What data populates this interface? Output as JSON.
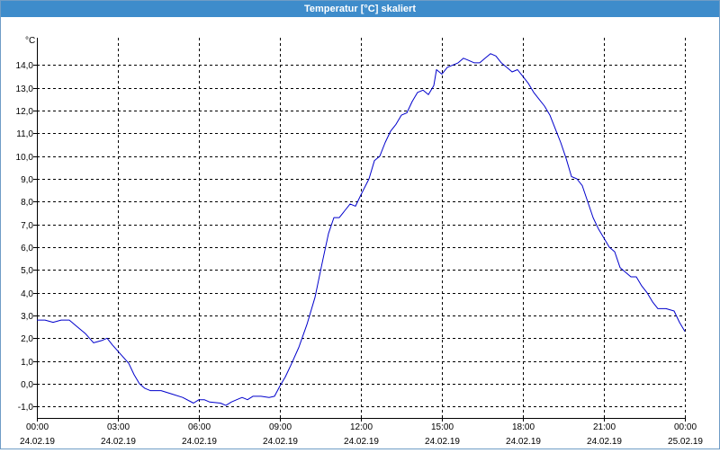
{
  "window": {
    "title": "Temperatur [°C] skaliert"
  },
  "chart_data": {
    "type": "line",
    "title": "Temperatur [°C] skaliert",
    "ylabel": "°C",
    "ylim": [
      -1.5,
      15.2
    ],
    "xlim_hours": [
      0,
      24
    ],
    "grid": true,
    "grid_style": "dashed",
    "line_color": "#0000cc",
    "yticks": [
      -1,
      0,
      1,
      2,
      3,
      4,
      5,
      6,
      7,
      8,
      9,
      10,
      11,
      12,
      13,
      14
    ],
    "ytick_labels": [
      "-1,0",
      "0,0",
      "1,0",
      "2,0",
      "3,0",
      "4,0",
      "5,0",
      "6,0",
      "7,0",
      "8,0",
      "9,0",
      "10,0",
      "11,0",
      "12,0",
      "13,0",
      "14,0"
    ],
    "xticks": [
      {
        "hour": 0,
        "time": "00:00",
        "date": "24.02.19"
      },
      {
        "hour": 3,
        "time": "03:00",
        "date": "24.02.19"
      },
      {
        "hour": 6,
        "time": "06:00",
        "date": "24.02.19"
      },
      {
        "hour": 9,
        "time": "09:00",
        "date": "24.02.19"
      },
      {
        "hour": 12,
        "time": "12:00",
        "date": "24.02.19"
      },
      {
        "hour": 15,
        "time": "15:00",
        "date": "24.02.19"
      },
      {
        "hour": 18,
        "time": "18:00",
        "date": "24.02.19"
      },
      {
        "hour": 21,
        "time": "21:00",
        "date": "24.02.19"
      },
      {
        "hour": 24,
        "time": "00:00",
        "date": "25.02.19"
      }
    ],
    "series": [
      {
        "points": [
          [
            0.0,
            2.8
          ],
          [
            0.3,
            2.8
          ],
          [
            0.6,
            2.7
          ],
          [
            0.9,
            2.8
          ],
          [
            1.2,
            2.8
          ],
          [
            1.5,
            2.5
          ],
          [
            1.8,
            2.2
          ],
          [
            2.1,
            1.8
          ],
          [
            2.4,
            1.9
          ],
          [
            2.6,
            2.0
          ],
          [
            2.8,
            1.7
          ],
          [
            3.1,
            1.3
          ],
          [
            3.4,
            0.9
          ],
          [
            3.6,
            0.4
          ],
          [
            3.8,
            0.0
          ],
          [
            4.0,
            -0.2
          ],
          [
            4.2,
            -0.3
          ],
          [
            4.6,
            -0.3
          ],
          [
            5.0,
            -0.45
          ],
          [
            5.4,
            -0.6
          ],
          [
            5.8,
            -0.85
          ],
          [
            6.0,
            -0.7
          ],
          [
            6.2,
            -0.7
          ],
          [
            6.4,
            -0.8
          ],
          [
            6.8,
            -0.85
          ],
          [
            7.0,
            -0.95
          ],
          [
            7.2,
            -0.8
          ],
          [
            7.4,
            -0.7
          ],
          [
            7.6,
            -0.6
          ],
          [
            7.8,
            -0.7
          ],
          [
            8.0,
            -0.55
          ],
          [
            8.3,
            -0.55
          ],
          [
            8.6,
            -0.6
          ],
          [
            8.8,
            -0.55
          ],
          [
            9.0,
            -0.1
          ],
          [
            9.2,
            0.3
          ],
          [
            9.4,
            0.8
          ],
          [
            9.7,
            1.6
          ],
          [
            10.0,
            2.6
          ],
          [
            10.3,
            3.8
          ],
          [
            10.6,
            5.5
          ],
          [
            10.8,
            6.6
          ],
          [
            11.0,
            7.3
          ],
          [
            11.2,
            7.3
          ],
          [
            11.4,
            7.6
          ],
          [
            11.6,
            7.9
          ],
          [
            11.8,
            7.8
          ],
          [
            12.0,
            8.3
          ],
          [
            12.3,
            9.0
          ],
          [
            12.5,
            9.8
          ],
          [
            12.7,
            10.0
          ],
          [
            12.9,
            10.6
          ],
          [
            13.1,
            11.1
          ],
          [
            13.3,
            11.4
          ],
          [
            13.5,
            11.8
          ],
          [
            13.7,
            11.9
          ],
          [
            13.9,
            12.4
          ],
          [
            14.1,
            12.8
          ],
          [
            14.3,
            12.9
          ],
          [
            14.5,
            12.7
          ],
          [
            14.7,
            13.1
          ],
          [
            14.8,
            13.8
          ],
          [
            15.0,
            13.6
          ],
          [
            15.2,
            13.9
          ],
          [
            15.4,
            14.0
          ],
          [
            15.6,
            14.1
          ],
          [
            15.8,
            14.3
          ],
          [
            16.0,
            14.2
          ],
          [
            16.2,
            14.1
          ],
          [
            16.4,
            14.1
          ],
          [
            16.6,
            14.3
          ],
          [
            16.8,
            14.5
          ],
          [
            17.0,
            14.4
          ],
          [
            17.2,
            14.1
          ],
          [
            17.4,
            13.9
          ],
          [
            17.6,
            13.7
          ],
          [
            17.8,
            13.8
          ],
          [
            18.0,
            13.5
          ],
          [
            18.2,
            13.2
          ],
          [
            18.4,
            12.8
          ],
          [
            18.6,
            12.5
          ],
          [
            18.8,
            12.2
          ],
          [
            19.0,
            11.8
          ],
          [
            19.2,
            11.2
          ],
          [
            19.4,
            10.6
          ],
          [
            19.6,
            9.9
          ],
          [
            19.8,
            9.1
          ],
          [
            20.0,
            9.0
          ],
          [
            20.2,
            8.7
          ],
          [
            20.4,
            8.0
          ],
          [
            20.6,
            7.3
          ],
          [
            20.8,
            6.8
          ],
          [
            21.0,
            6.4
          ],
          [
            21.2,
            6.0
          ],
          [
            21.4,
            5.8
          ],
          [
            21.6,
            5.1
          ],
          [
            21.8,
            4.9
          ],
          [
            22.0,
            4.7
          ],
          [
            22.2,
            4.7
          ],
          [
            22.4,
            4.3
          ],
          [
            22.6,
            4.0
          ],
          [
            22.8,
            3.6
          ],
          [
            23.0,
            3.3
          ],
          [
            23.3,
            3.3
          ],
          [
            23.6,
            3.2
          ],
          [
            23.8,
            2.7
          ],
          [
            24.0,
            2.3
          ]
        ]
      }
    ]
  }
}
